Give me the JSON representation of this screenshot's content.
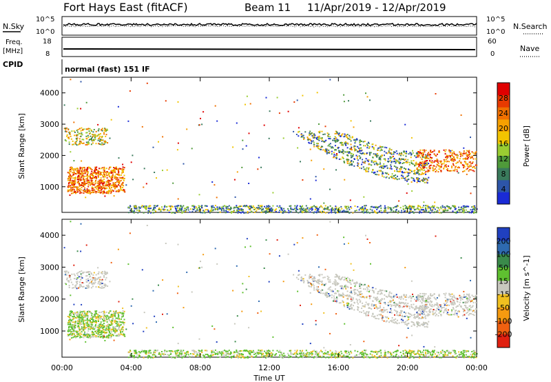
{
  "header": {
    "station": "Fort Hays East (fitACF)",
    "beam": "Beam 11",
    "dates": "11/Apr/2019 - 12/Apr/2019"
  },
  "panels": {
    "noise": {
      "left_label": "N.Sky",
      "right_label": "N.Search",
      "left_ticks": [
        "10^5",
        "10^0"
      ],
      "right_ticks": [
        "10^5",
        "10^0"
      ]
    },
    "freq": {
      "left_label_1": "Freq.",
      "left_label_2": "[MHz]",
      "right_label": "Nave",
      "left_ticks": [
        "18",
        "8"
      ],
      "right_ticks": [
        "60",
        "0"
      ]
    },
    "cpid": {
      "label": "CPID",
      "text": "normal (fast) 151 IF"
    }
  },
  "colors": {
    "power": [
      "#1a2bd6",
      "#2d55a8",
      "#3a7a5c",
      "#4f9a3a",
      "#9acd32",
      "#f2c400",
      "#f5a000",
      "#f07000",
      "#e83a00",
      "#e00000"
    ],
    "velocity": [
      "#2040c0",
      "#2e6ab0",
      "#3a8a4a",
      "#5fc030",
      "#c8c8be",
      "#f0c020",
      "#f59a10",
      "#f06010",
      "#e02010"
    ]
  },
  "chart_data": [
    {
      "type": "heatmap",
      "title": "Power",
      "xlabel": "",
      "ylabel": "Slant Range [km]",
      "x_range_hours": [
        0,
        24
      ],
      "ylim_km": [
        180,
        4500
      ],
      "x_ticks": [
        "00:00",
        "04:00",
        "08:00",
        "12:00",
        "16:00",
        "20:00",
        "00:00"
      ],
      "y_ticks": [
        "1000",
        "2000",
        "3000",
        "4000"
      ],
      "colorbar_label": "Power [dB]",
      "colorbar_ticks": [
        "4",
        "8",
        "12",
        "16",
        "20",
        "24",
        "28"
      ],
      "scatter_regions": [
        {
          "t_start": 0.2,
          "t_end": 3.6,
          "r_start": 800,
          "r_end": 1700,
          "level": "high"
        },
        {
          "t_start": 0.1,
          "t_end": 2.6,
          "r_start": 2300,
          "r_end": 3000,
          "level": "medium"
        },
        {
          "t_start": 12.2,
          "t_end": 21.0,
          "r_start": 900,
          "r_end": 2600,
          "level": "medium"
        },
        {
          "t_start": 20.5,
          "t_end": 24.0,
          "r_start": 1500,
          "r_end": 2300,
          "level": "high"
        },
        {
          "t_start": 4.0,
          "t_end": 24.0,
          "r_start": 180,
          "r_end": 400,
          "level": "low"
        }
      ]
    },
    {
      "type": "heatmap",
      "title": "Velocity",
      "xlabel": "Time UT",
      "ylabel": "Slant Range [km]",
      "x_range_hours": [
        0,
        24
      ],
      "ylim_km": [
        180,
        4500
      ],
      "x_ticks": [
        "00:00",
        "04:00",
        "08:00",
        "12:00",
        "16:00",
        "20:00",
        "00:00"
      ],
      "y_ticks": [
        "1000",
        "2000",
        "3000",
        "4000"
      ],
      "colorbar_label": "Velocity [m s^-1]",
      "colorbar_ticks": [
        "200",
        "100",
        "50",
        "15",
        "-15",
        "-50",
        "-100",
        "-200"
      ]
    }
  ]
}
